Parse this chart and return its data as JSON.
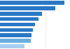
{
  "values": [
    57,
    49,
    37,
    34,
    31,
    29,
    28,
    27,
    22
  ],
  "bar_colors": [
    "#2979c5",
    "#2979c5",
    "#2979c5",
    "#2979c5",
    "#2979c5",
    "#2979c5",
    "#2979c5",
    "#6aaee0",
    "#a8cef0"
  ],
  "xlim": [
    0,
    62
  ],
  "background_color": "#ffffff",
  "bar_height": 0.72,
  "gridline_color": "#dddddd"
}
